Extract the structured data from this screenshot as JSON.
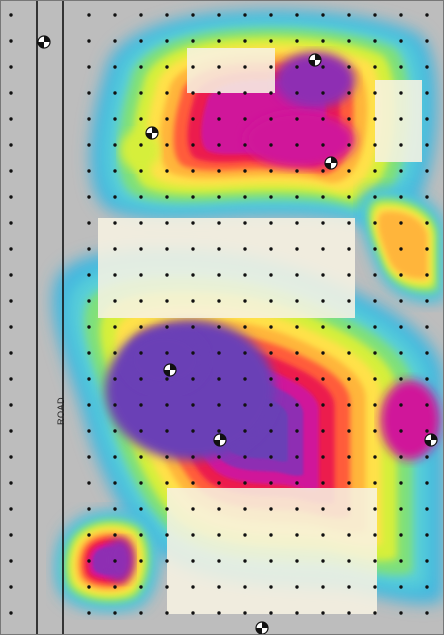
{
  "map": {
    "road_label": "ROAD",
    "colors": {
      "background": "#bdbdbd",
      "road_line": "#111111",
      "grid_dot": "#111111",
      "overlay_block": "#f7f3e3",
      "ramp": [
        "#3fb6e0",
        "#58cfd8",
        "#7fe07a",
        "#d6ef3a",
        "#ffe14a",
        "#ffb53b",
        "#ff5b3a",
        "#ec1f4d",
        "#d0199a",
        "#8e2fb3",
        "#6a3fb6"
      ]
    },
    "legend_shown": false
  }
}
